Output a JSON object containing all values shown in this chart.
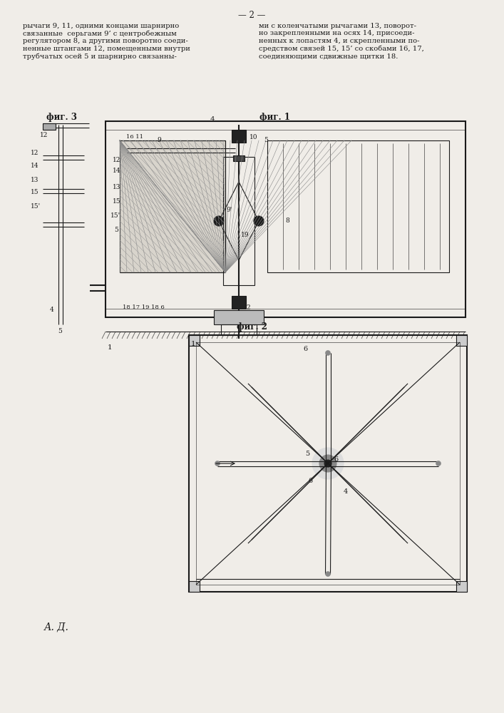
{
  "page_bg": "#f0ede8",
  "line_color": "#1a1a1a",
  "text_color": "#1a1a1a",
  "page_num": "— 2 —",
  "body_text_left": "рычаги 9, 11, одними концами шарнирно\nсвязанные  серьгами 9’ с центробежным\nрегулятором 8, а другими поворотно соеди-\nненные штангами 12, помещенными внутри\nтрубчатых осей 5 и шарнирно связанны-",
  "body_text_right": "ми с коленчатыми рычагами 13, поворот-\nно закрепленными на осях 14, присоеди-\nненных к лопастям 4, и скрепленными по-\nсредством связей 15, 15’ со скобами 16, 17,\nсоединяющими сдвижные щитки 18.",
  "fig1_label": "фиг. 1",
  "fig2_label": "фиг. 2",
  "fig3_label": "фиг. 3",
  "author": "А. Д."
}
